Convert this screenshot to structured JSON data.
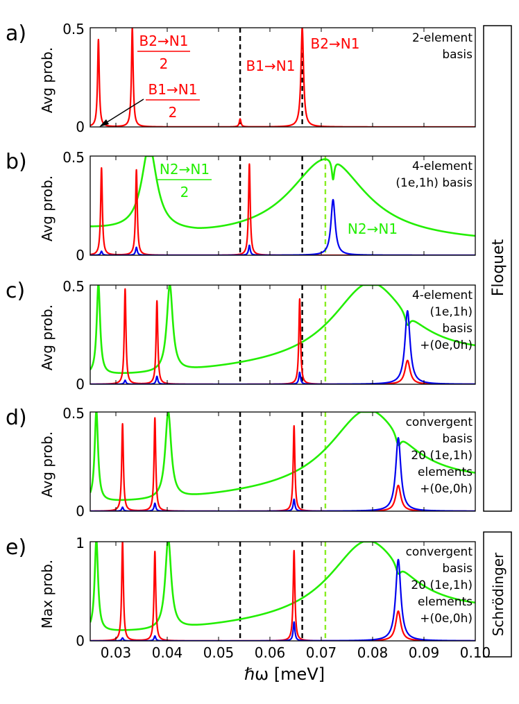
{
  "figure": {
    "xlabel": "ℏω [meV]",
    "xlim": [
      0.025,
      0.1
    ],
    "xticks": [
      "0.03",
      "0.04",
      "0.05",
      "0.06",
      "0.07",
      "0.08",
      "0.09",
      "0.10"
    ],
    "side_labels": [
      "Floquet",
      "Schrödinger"
    ],
    "colors": {
      "red": "#ff0000",
      "green": "#22ee00",
      "blue": "#0000ee",
      "black": "#000000",
      "lightgreen": "#88ee22"
    }
  },
  "chart_data": [
    {
      "type": "line",
      "panel_label": "a)",
      "ylabel": "Avg prob.",
      "ylim": [
        0,
        0.5
      ],
      "yticks": [
        "0",
        "0.5"
      ],
      "basis_label": [
        "2-element",
        "basis"
      ],
      "vlines": [
        {
          "x": 0.0542,
          "color": "black"
        },
        {
          "x": 0.0663,
          "color": "black"
        }
      ],
      "series": [
        {
          "name": "red",
          "color": "red",
          "peaks": [
            {
              "x": 0.0266,
              "h": 0.44,
              "w": 0.0002
            },
            {
              "x": 0.0332,
              "h": 0.5,
              "w": 0.0002
            },
            {
              "x": 0.0542,
              "h": 0.04,
              "w": 0.0002
            },
            {
              "x": 0.0663,
              "h": 0.5,
              "w": 0.0003
            }
          ]
        }
      ],
      "annotations": [
        {
          "text": "B2→N1",
          "frac": true,
          "color": "red"
        },
        {
          "text": "B1→N1",
          "frac": true,
          "color": "red",
          "arrow": true
        },
        {
          "text": "B1→N1",
          "frac": false,
          "color": "red"
        },
        {
          "text": "B2→N1",
          "frac": false,
          "color": "red"
        }
      ],
      "denominator": "2"
    },
    {
      "type": "line",
      "panel_label": "b)",
      "ylabel": "Avg prob.",
      "ylim": [
        0,
        0.5
      ],
      "yticks": [
        "0",
        "0.5"
      ],
      "basis_label": [
        "4-element",
        "(1e,1h) basis"
      ],
      "vlines": [
        {
          "x": 0.0542,
          "color": "black"
        },
        {
          "x": 0.0663,
          "color": "black"
        },
        {
          "x": 0.0708,
          "color": "lightgreen"
        }
      ],
      "series": [
        {
          "name": "green",
          "color": "green",
          "baseline": {
            "x0": 0.025,
            "y0": 0.12,
            "xm": 0.046,
            "ym": 0.075,
            "x1": 0.1,
            "y1": 0.06
          },
          "peaks": [
            {
              "x": 0.0365,
              "h": 0.43,
              "w": 0.0018
            },
            {
              "x": 0.0712,
              "h": 0.42,
              "w": 0.009
            }
          ],
          "dips": [
            {
              "x": 0.0723,
              "d": 0.1,
              "w": 0.0003
            }
          ]
        },
        {
          "name": "red",
          "color": "red",
          "peaks": [
            {
              "x": 0.0272,
              "h": 0.44,
              "w": 0.0002
            },
            {
              "x": 0.034,
              "h": 0.43,
              "w": 0.0002
            },
            {
              "x": 0.056,
              "h": 0.46,
              "w": 0.0002
            }
          ]
        },
        {
          "name": "blue",
          "color": "blue",
          "peaks": [
            {
              "x": 0.0272,
              "h": 0.02,
              "w": 0.0002
            },
            {
              "x": 0.034,
              "h": 0.04,
              "w": 0.0002
            },
            {
              "x": 0.056,
              "h": 0.05,
              "w": 0.0002
            },
            {
              "x": 0.0723,
              "h": 0.28,
              "w": 0.0005
            }
          ]
        }
      ],
      "annotations": [
        {
          "text": "N2→N1",
          "frac": true,
          "color": "green"
        },
        {
          "text": "N2→N1",
          "frac": false,
          "color": "green"
        }
      ],
      "denominator": "2"
    },
    {
      "type": "line",
      "panel_label": "c)",
      "ylabel": "Avg prob.",
      "ylim": [
        0,
        0.5
      ],
      "yticks": [
        "0",
        "0.5"
      ],
      "basis_label": [
        "4-element",
        "(1e,1h)",
        "basis",
        "+(0e,0h)"
      ],
      "vlines": [
        {
          "x": 0.0542,
          "color": "black"
        },
        {
          "x": 0.0663,
          "color": "black"
        },
        {
          "x": 0.0708,
          "color": "lightgreen"
        }
      ],
      "series": [
        {
          "name": "green",
          "color": "green",
          "baseline": {
            "x0": 0.025,
            "y0": 0.035,
            "xm": 0.04,
            "ym": 0.04,
            "x1": 0.1,
            "y1": 0.13
          },
          "peaks": [
            {
              "x": 0.0266,
              "h": 0.46,
              "w": 0.0004
            },
            {
              "x": 0.0405,
              "h": 0.44,
              "w": 0.0007
            },
            {
              "x": 0.0795,
              "h": 0.41,
              "w": 0.009
            }
          ],
          "dips": [
            {
              "x": 0.0868,
              "d": 0.06,
              "w": 0.0006
            }
          ]
        },
        {
          "name": "red",
          "color": "red",
          "peaks": [
            {
              "x": 0.0318,
              "h": 0.48,
              "w": 0.0002
            },
            {
              "x": 0.038,
              "h": 0.42,
              "w": 0.0002
            },
            {
              "x": 0.0658,
              "h": 0.43,
              "w": 0.0002
            },
            {
              "x": 0.0868,
              "h": 0.12,
              "w": 0.0006
            }
          ]
        },
        {
          "name": "blue",
          "color": "blue",
          "peaks": [
            {
              "x": 0.0318,
              "h": 0.02,
              "w": 0.0002
            },
            {
              "x": 0.038,
              "h": 0.04,
              "w": 0.0002
            },
            {
              "x": 0.0658,
              "h": 0.06,
              "w": 0.0002
            },
            {
              "x": 0.0868,
              "h": 0.37,
              "w": 0.0006
            }
          ]
        }
      ]
    },
    {
      "type": "line",
      "panel_label": "d)",
      "ylabel": "Avg prob.",
      "ylim": [
        0,
        0.5
      ],
      "yticks": [
        "0",
        "0.5"
      ],
      "basis_label": [
        "convergent",
        "basis",
        "20 (1e,1h)",
        "elements",
        "+(0e,0h)"
      ],
      "vlines": [
        {
          "x": 0.0542,
          "color": "black"
        },
        {
          "x": 0.0663,
          "color": "black"
        },
        {
          "x": 0.0708,
          "color": "lightgreen"
        }
      ],
      "series": [
        {
          "name": "green",
          "color": "green",
          "baseline": {
            "x0": 0.025,
            "y0": 0.035,
            "xm": 0.04,
            "ym": 0.04,
            "x1": 0.1,
            "y1": 0.13
          },
          "peaks": [
            {
              "x": 0.0262,
              "h": 0.46,
              "w": 0.0004
            },
            {
              "x": 0.0402,
              "h": 0.44,
              "w": 0.0007
            },
            {
              "x": 0.079,
              "h": 0.41,
              "w": 0.009
            }
          ],
          "dips": [
            {
              "x": 0.085,
              "d": 0.06,
              "w": 0.0006
            }
          ]
        },
        {
          "name": "red",
          "color": "red",
          "peaks": [
            {
              "x": 0.0313,
              "h": 0.44,
              "w": 0.0002
            },
            {
              "x": 0.0376,
              "h": 0.47,
              "w": 0.0002
            },
            {
              "x": 0.0647,
              "h": 0.43,
              "w": 0.0002
            },
            {
              "x": 0.085,
              "h": 0.13,
              "w": 0.0006
            }
          ]
        },
        {
          "name": "blue",
          "color": "blue",
          "peaks": [
            {
              "x": 0.0313,
              "h": 0.02,
              "w": 0.0002
            },
            {
              "x": 0.0376,
              "h": 0.04,
              "w": 0.0002
            },
            {
              "x": 0.0647,
              "h": 0.06,
              "w": 0.0002
            },
            {
              "x": 0.085,
              "h": 0.37,
              "w": 0.0006
            }
          ]
        }
      ]
    },
    {
      "type": "line",
      "panel_label": "e)",
      "ylabel": "Max prob.",
      "ylim": [
        0,
        1
      ],
      "yticks": [
        "0",
        "1"
      ],
      "basis_label": [
        "convergent",
        "basis",
        "20 (1e,1h)",
        "elements",
        "+(0e,0h)"
      ],
      "vlines": [
        {
          "x": 0.0542,
          "color": "black"
        },
        {
          "x": 0.0663,
          "color": "black"
        },
        {
          "x": 0.0708,
          "color": "lightgreen"
        }
      ],
      "series": [
        {
          "name": "green",
          "color": "green",
          "baseline": {
            "x0": 0.025,
            "y0": 0.07,
            "xm": 0.04,
            "ym": 0.07,
            "x1": 0.1,
            "y1": 0.26
          },
          "peaks": [
            {
              "x": 0.0262,
              "h": 0.93,
              "w": 0.0004
            },
            {
              "x": 0.0402,
              "h": 0.92,
              "w": 0.0007
            },
            {
              "x": 0.079,
              "h": 0.81,
              "w": 0.009
            }
          ],
          "dips": [
            {
              "x": 0.085,
              "d": 0.1,
              "w": 0.0006
            }
          ]
        },
        {
          "name": "red",
          "color": "red",
          "peaks": [
            {
              "x": 0.0313,
              "h": 1.0,
              "w": 0.0002
            },
            {
              "x": 0.0376,
              "h": 0.9,
              "w": 0.0002
            },
            {
              "x": 0.0647,
              "h": 0.91,
              "w": 0.0002
            },
            {
              "x": 0.085,
              "h": 0.3,
              "w": 0.0006
            }
          ]
        },
        {
          "name": "blue",
          "color": "blue",
          "peaks": [
            {
              "x": 0.0313,
              "h": 0.03,
              "w": 0.0002
            },
            {
              "x": 0.0376,
              "h": 0.05,
              "w": 0.0002
            },
            {
              "x": 0.0647,
              "h": 0.19,
              "w": 0.0002
            },
            {
              "x": 0.085,
              "h": 0.82,
              "w": 0.0006
            }
          ]
        }
      ]
    }
  ]
}
